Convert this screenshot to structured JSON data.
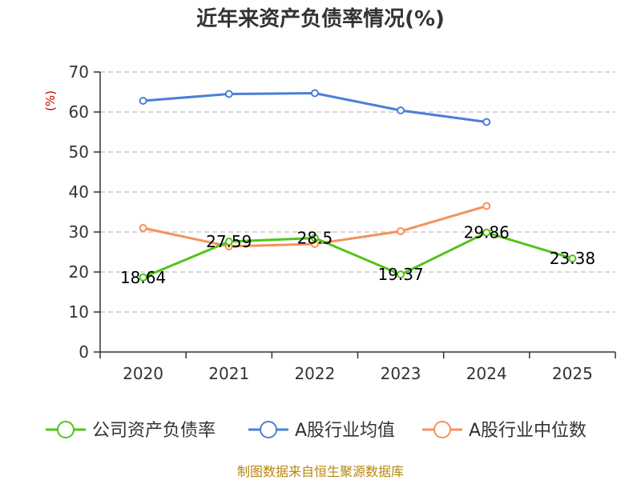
{
  "chart_data": {
    "type": "line",
    "title": "近年来资产负债率情况(%)",
    "ylabel": "(%)",
    "xlabel": "",
    "categories": [
      "2020",
      "2021",
      "2022",
      "2023",
      "2024",
      "2025"
    ],
    "ylim": [
      0,
      70
    ],
    "yticks": [
      0,
      10,
      20,
      30,
      40,
      50,
      60,
      70
    ],
    "grid": true,
    "legend_position": "bottom",
    "series": [
      {
        "name": "公司资产负债率",
        "color": "#52c41a",
        "values": [
          18.64,
          27.59,
          28.5,
          19.37,
          29.86,
          23.38
        ],
        "labels": [
          "18.64",
          "27.59",
          "28.5",
          "19.37",
          "29.86",
          "23.38"
        ]
      },
      {
        "name": "A股行业均值",
        "color": "#4a7fd8",
        "values": [
          62.8,
          64.5,
          64.7,
          60.4,
          57.5,
          null
        ]
      },
      {
        "name": "A股行业中位数",
        "color": "#f5915c",
        "values": [
          31.0,
          26.4,
          27.0,
          30.2,
          36.5,
          null
        ]
      }
    ]
  },
  "source": "制图数据来自恒生聚源数据库"
}
